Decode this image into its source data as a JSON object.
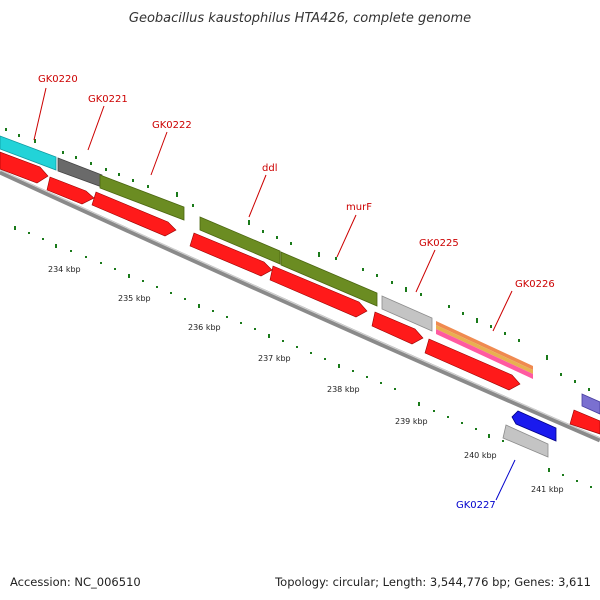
{
  "title": "Geobacillus kaustophilus HTA426, complete genome",
  "footer": {
    "accession": "Accession: NC_006510",
    "summary": "Topology: circular; Length: 3,544,776 bp; Genes: 3,611"
  },
  "colors": {
    "label_red": "#cc0000",
    "label_blue": "#0000cc",
    "tick_green": "#1a7a1a",
    "backbone": "#8a8a8a",
    "arrow_red": "#ff1a1a",
    "gene_cyan": "#22d3d8",
    "gene_darkgray": "#6a6a6a",
    "gene_olive": "#6b8c22",
    "gene_lightgray": "#c4c4c4",
    "gene_pink": "#ff5aa0",
    "gene_blue": "#1a1aee",
    "gene_purple": "#7a70d0"
  },
  "gene_labels": [
    {
      "name": "GK0220",
      "color": "#cc0000"
    },
    {
      "name": "GK0221",
      "color": "#cc0000"
    },
    {
      "name": "GK0222",
      "color": "#cc0000"
    },
    {
      "name": "ddl",
      "color": "#cc0000"
    },
    {
      "name": "murF",
      "color": "#cc0000"
    },
    {
      "name": "GK0225",
      "color": "#cc0000"
    },
    {
      "name": "GK0226",
      "color": "#cc0000"
    },
    {
      "name": "GK0227",
      "color": "#0000cc"
    }
  ],
  "scale_labels": [
    "234 kbp",
    "235 kbp",
    "236 kbp",
    "237 kbp",
    "238 kbp",
    "239 kbp",
    "240 kbp",
    "241 kbp"
  ]
}
